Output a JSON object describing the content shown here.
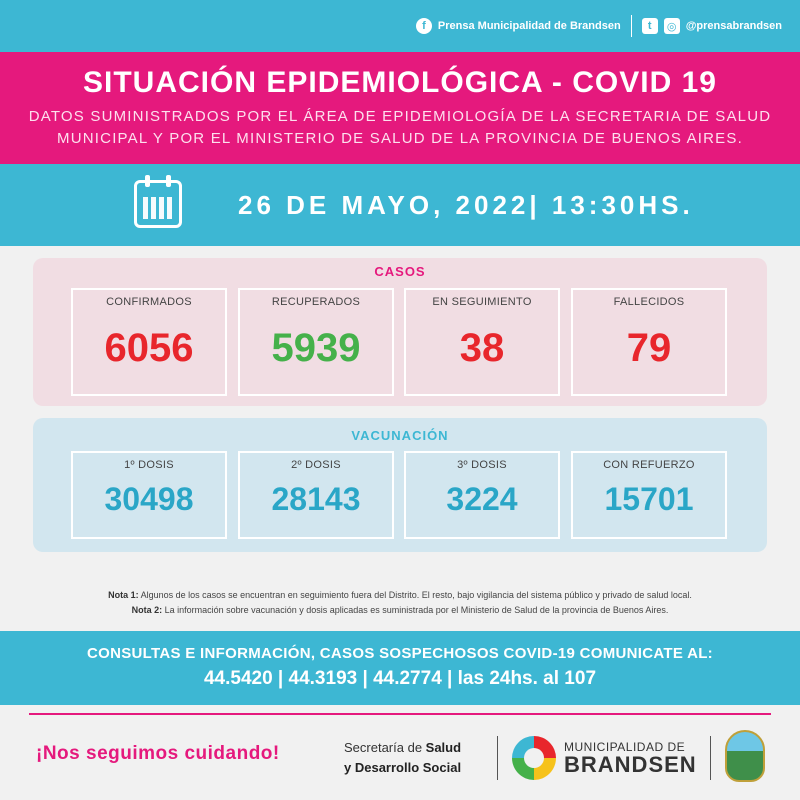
{
  "topbar": {
    "facebook_label": "Prensa Municipalidad de Brandsen",
    "social_handle": "@prensabrandsen"
  },
  "header": {
    "title": "SITUACIÓN EPIDEMIOLÓGICA - COVID 19",
    "subtitle_line1": "DATOS SUMINISTRADOS POR EL ÁREA DE EPIDEMIOLOGÍA DE LA SECRETARIA DE SALUD",
    "subtitle_line2": "MUNICIPAL Y POR EL MINISTERIO DE SALUD DE LA PROVINCIA DE BUENOS AIRES."
  },
  "date": "26 DE MAYO, 2022| 13:30HS.",
  "casos": {
    "title": "CASOS",
    "cards": [
      {
        "label": "CONFIRMADOS",
        "value": "6056"
      },
      {
        "label": "RECUPERADOS",
        "value": "5939"
      },
      {
        "label": "EN SEGUIMIENTO",
        "value": "38"
      },
      {
        "label": "FALLECIDOS",
        "value": "79"
      }
    ]
  },
  "vacunacion": {
    "title": "VACUNACIÓN",
    "cards": [
      {
        "label": "1º DOSIS",
        "value": "30498"
      },
      {
        "label": "2º DOSIS",
        "value": "28143"
      },
      {
        "label": "3º DOSIS",
        "value": "3224"
      },
      {
        "label": "CON REFUERZO",
        "value": "15701"
      }
    ]
  },
  "notes": {
    "nota1_label": "Nota 1:",
    "nota1_text": "Algunos de los casos se encuentran en seguimiento fuera del Distrito. El resto, bajo vigilancia del sistema público y privado de salud local.",
    "nota2_label": "Nota 2:",
    "nota2_text": "La información sobre vacunación y dosis aplicadas es suministrada por el Ministerio de Salud de la provincia de Buenos Aires."
  },
  "consultas": {
    "line1": "CONSULTAS E INFORMACIÓN, CASOS SOSPECHOSOS COVID-19 COMUNICATE AL:",
    "line2": "44.5420 | 44.3193 | 44.2774 | las 24hs. al 107"
  },
  "footer": {
    "slogan": "¡Nos seguimos cuidando!",
    "secretaria_line1_a": "Secretaría de ",
    "secretaria_line1_b": "Salud",
    "secretaria_line2": "y Desarrollo Social",
    "muni_line1": "MUNICIPALIDAD DE",
    "muni_line2": "BRANDSEN"
  },
  "colors": {
    "magenta": "#e5197d",
    "cyan": "#3db7d3",
    "red": "#e8262c",
    "green": "#45b14a"
  }
}
